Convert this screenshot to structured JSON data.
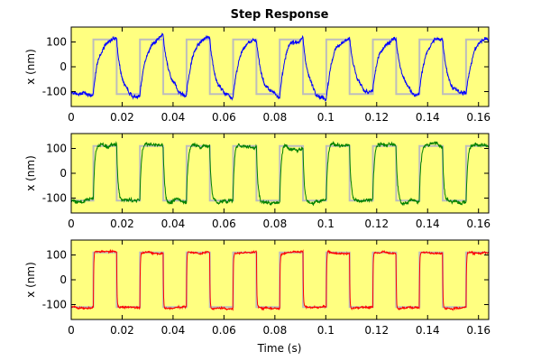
{
  "figure": {
    "title": "Step Response",
    "xlabel": "Time (s)",
    "ylabel": "x (nm)"
  },
  "colors": {
    "plot_background": "#FFFF80",
    "reference": "#BDBDBD",
    "axis": "#000000"
  },
  "chart_data": [
    {
      "type": "line",
      "title": "Step Response",
      "xlabel": "",
      "ylabel": "x (nm)",
      "xlim": [
        0,
        0.164
      ],
      "ylim": [
        -160,
        160
      ],
      "xticks": [
        "0",
        "0.02",
        "0.04",
        "0.06",
        "0.08",
        "0.1",
        "0.12",
        "0.14",
        "0.16"
      ],
      "yticks": [
        "100",
        "0",
        "-100"
      ],
      "reference": {
        "period": 0.0183,
        "rise_time": 0.0087,
        "high": 110,
        "low": -110
      },
      "series": [
        {
          "color": "#0000FF",
          "response": "slow",
          "tau": 0.0025,
          "noise": 11,
          "overshoot": 20
        }
      ]
    },
    {
      "type": "line",
      "xlabel": "",
      "ylabel": "x (nm)",
      "xlim": [
        0,
        0.164
      ],
      "ylim": [
        -160,
        160
      ],
      "xticks": [
        "0",
        "0.02",
        "0.04",
        "0.06",
        "0.08",
        "0.1",
        "0.12",
        "0.14",
        "0.16"
      ],
      "yticks": [
        "100",
        "0",
        "-100"
      ],
      "reference": {
        "period": 0.0183,
        "rise_time": 0.0087,
        "high": 110,
        "low": -110
      },
      "series": [
        {
          "color": "#008000",
          "response": "medium",
          "tau": 0.0006,
          "noise": 10,
          "overshoot": 12
        }
      ]
    },
    {
      "type": "line",
      "xlabel": "Time (s)",
      "ylabel": "x (nm)",
      "xlim": [
        0,
        0.164
      ],
      "ylim": [
        -160,
        160
      ],
      "xticks": [
        "0",
        "0.02",
        "0.04",
        "0.06",
        "0.08",
        "0.1",
        "0.12",
        "0.14",
        "0.16"
      ],
      "yticks": [
        "100",
        "0",
        "-100"
      ],
      "reference": {
        "period": 0.0183,
        "rise_time": 0.0087,
        "high": 110,
        "low": -110
      },
      "series": [
        {
          "color": "#FF0000",
          "response": "fast",
          "tau": 0.00015,
          "noise": 5,
          "overshoot": 4
        }
      ]
    }
  ]
}
